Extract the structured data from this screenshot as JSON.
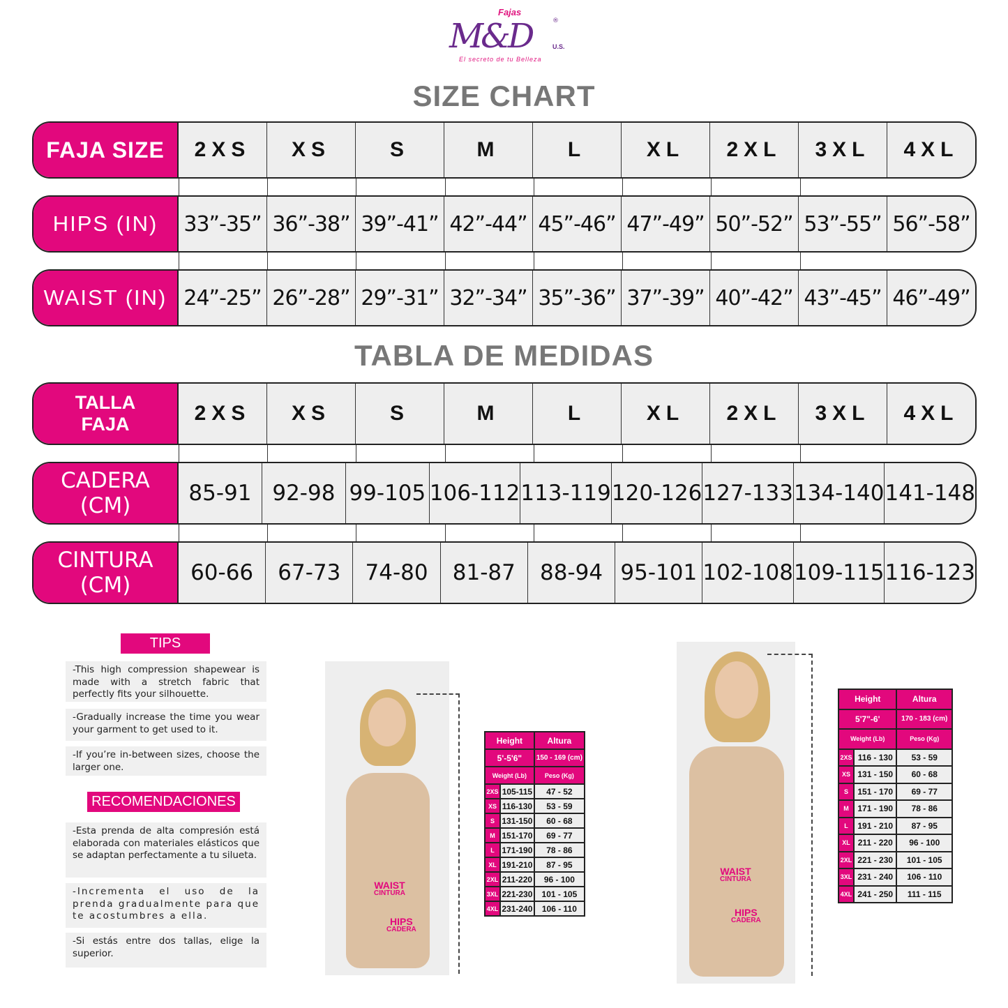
{
  "logo": {
    "top": "Fajas",
    "main": "M&D",
    "registered": "®",
    "suffix": "U.S.",
    "tagline": "El secreto de tu Belleza"
  },
  "size_chart": {
    "title": "SIZE CHART",
    "rows": [
      {
        "label": "FAJA SIZE",
        "values": [
          "2XS",
          "XS",
          "S",
          "M",
          "L",
          "XL",
          "2XL",
          "3XL",
          "4XL"
        ]
      },
      {
        "label": "HIPS (IN)",
        "values": [
          "33”-35”",
          "36”-38”",
          "39”-41”",
          "42”-44”",
          "45”-46”",
          "47”-49”",
          "50”-52”",
          "53”-55”",
          "56”-58”"
        ]
      },
      {
        "label": "WAIST (IN)",
        "values": [
          "24”-25”",
          "26”-28”",
          "29”-31”",
          "32”-34”",
          "35”-36”",
          "37”-39”",
          "40”-42”",
          "43”-45”",
          "46”-49”"
        ]
      }
    ]
  },
  "tabla": {
    "title": "TABLA DE MEDIDAS",
    "rows": [
      {
        "label": "TALLA FAJA",
        "values": [
          "2XS",
          "XS",
          "S",
          "M",
          "L",
          "XL",
          "2XL",
          "3XL",
          "4XL"
        ]
      },
      {
        "label": "CADERA (CM)",
        "values": [
          "85-91",
          "92-98",
          "99-105",
          "106-112",
          "113-119",
          "120-126",
          "127-133",
          "134-140",
          "141-148"
        ]
      },
      {
        "label": "CINTURA (CM)",
        "values": [
          "60-66",
          "67-73",
          "74-80",
          "81-87",
          "88-94",
          "95-101",
          "102-108",
          "109-115",
          "116-123"
        ]
      }
    ]
  },
  "tips": {
    "title": "TIPS",
    "items": [
      "-This high compression shapewear is made with a stretch fabric that perfectly fits your silhouette.",
      "-Gradually increase the time you wear your garment to get used to it.",
      "-If you’re in-between sizes, choose the larger one."
    ]
  },
  "recomendaciones": {
    "title": "RECOMENDACIONES",
    "items": [
      "-Esta prenda de alta compresión está elaborada con materiales elásticos que se adaptan perfectamente a tu silueta.",
      "-Incrementa el uso de la prenda gradualmente para que te acostumbres a ella.",
      "-Si estás entre dos tallas, elige la superior."
    ]
  },
  "photo_labels": {
    "waist": "WAIST",
    "cintura": "CINTURA",
    "hips": "HIPS",
    "cadera": "CADERA"
  },
  "small_table_1": {
    "height": "Height",
    "altura": "Altura",
    "height_val": "5'-5'6\"",
    "altura_val": "150 - 169 (cm)",
    "weight": "Weight (Lb)",
    "peso": "Peso (Kg)",
    "rows": [
      [
        "2XS",
        "105-115",
        "47 - 52"
      ],
      [
        "XS",
        "116-130",
        "53 - 59"
      ],
      [
        "S",
        "131-150",
        "60 - 68"
      ],
      [
        "M",
        "151-170",
        "69 - 77"
      ],
      [
        "L",
        "171-190",
        "78 - 86"
      ],
      [
        "XL",
        "191-210",
        "87 - 95"
      ],
      [
        "2XL",
        "211-220",
        "96 - 100"
      ],
      [
        "3XL",
        "221-230",
        "101 - 105"
      ],
      [
        "4XL",
        "231-240",
        "106 - 110"
      ]
    ]
  },
  "small_table_2": {
    "height": "Height",
    "altura": "Altura",
    "height_val": "5'7\"-6'",
    "altura_val": "170 - 183 (cm)",
    "weight": "Weight (Lb)",
    "peso": "Peso (Kg)",
    "rows": [
      [
        "2XS",
        "116 - 130",
        "53 - 59"
      ],
      [
        "XS",
        "131 - 150",
        "60 - 68"
      ],
      [
        "S",
        "151 - 170",
        "69 - 77"
      ],
      [
        "M",
        "171 - 190",
        "78 - 86"
      ],
      [
        "L",
        "191 - 210",
        "87 - 95"
      ],
      [
        "XL",
        "211 - 220",
        "96 - 100"
      ],
      [
        "2XL",
        "221 - 230",
        "101 - 105"
      ],
      [
        "3XL",
        "231 - 240",
        "106 - 110"
      ],
      [
        "4XL",
        "241 - 250",
        "111 - 115"
      ]
    ]
  },
  "colors": {
    "accent": "#e2087d",
    "purple": "#6a2a8c",
    "title_gray": "#777777",
    "cell_bg": "#eeeeee"
  }
}
